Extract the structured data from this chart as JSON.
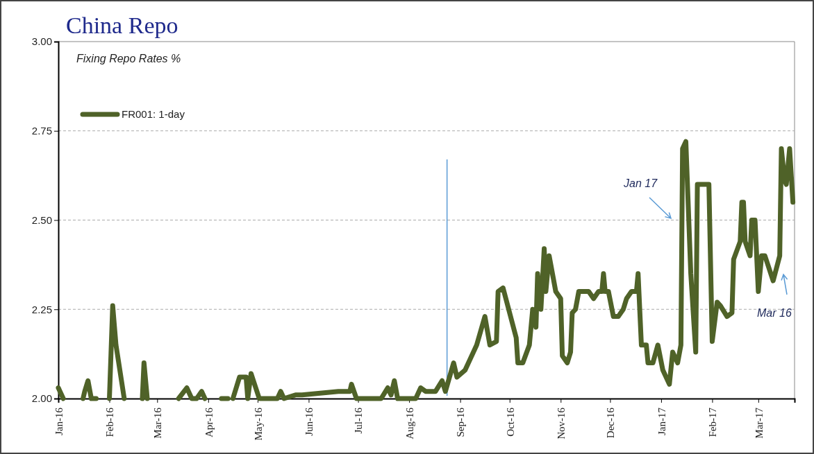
{
  "chart_data": {
    "type": "line",
    "title": "China Repo",
    "subtitle": "Fixing Repo Rates %",
    "x": [
      "2016-01-01",
      "2016-01-02",
      "2016-01-04",
      "2016-01-08",
      "2016-01-16",
      "2016-01-17",
      "2016-01-19",
      "2016-01-21",
      "2016-01-24",
      "2016-01-27",
      "2016-02-01",
      "2016-02-03",
      "2016-02-05",
      "2016-02-10",
      "2016-02-14",
      "2016-02-21",
      "2016-02-22",
      "2016-02-24",
      "2016-02-28",
      "2016-03-14",
      "2016-03-19",
      "2016-03-22",
      "2016-03-25",
      "2016-03-28",
      "2016-03-30",
      "2016-04-03",
      "2016-04-09",
      "2016-04-13",
      "2016-04-14",
      "2016-04-16",
      "2016-04-20",
      "2016-04-24",
      "2016-04-25",
      "2016-04-27",
      "2016-05-02",
      "2016-05-13",
      "2016-05-15",
      "2016-05-17",
      "2016-05-24",
      "2016-05-28",
      "2016-06-19",
      "2016-06-26",
      "2016-06-27",
      "2016-06-30",
      "2016-07-15",
      "2016-07-19",
      "2016-07-21",
      "2016-07-23",
      "2016-07-25",
      "2016-08-05",
      "2016-08-08",
      "2016-08-11",
      "2016-08-17",
      "2016-08-21",
      "2016-08-23",
      "2016-08-28",
      "2016-08-30",
      "2016-09-04",
      "2016-09-11",
      "2016-09-16",
      "2016-09-19",
      "2016-09-23",
      "2016-09-24",
      "2016-09-27",
      "2016-10-05",
      "2016-10-06",
      "2016-10-09",
      "2016-10-13",
      "2016-10-15",
      "2016-10-17",
      "2016-10-18",
      "2016-10-20",
      "2016-10-22",
      "2016-10-23",
      "2016-10-25",
      "2016-10-29",
      "2016-11-01",
      "2016-11-02",
      "2016-11-05",
      "2016-11-07",
      "2016-11-08",
      "2016-11-10",
      "2016-11-12",
      "2016-11-18",
      "2016-11-21",
      "2016-11-24",
      "2016-11-26",
      "2016-11-27",
      "2016-11-28",
      "2016-11-30",
      "2016-12-03",
      "2016-12-06",
      "2016-12-09",
      "2016-12-11",
      "2016-12-14",
      "2016-12-17",
      "2016-12-18",
      "2016-12-20",
      "2016-12-23",
      "2016-12-24",
      "2016-12-27",
      "2016-12-30",
      "2017-01-02",
      "2017-01-06",
      "2017-01-08",
      "2017-01-11",
      "2017-01-13",
      "2017-01-14",
      "2017-01-16",
      "2017-01-19",
      "2017-01-22",
      "2017-01-23",
      "2017-01-30",
      "2017-02-01",
      "2017-02-04",
      "2017-02-06",
      "2017-02-10",
      "2017-02-13",
      "2017-02-14",
      "2017-02-18",
      "2017-02-19",
      "2017-02-20",
      "2017-02-21",
      "2017-02-24",
      "2017-02-25",
      "2017-02-27",
      "2017-03-01",
      "2017-03-03",
      "2017-03-05",
      "2017-03-10",
      "2017-03-14",
      "2017-03-15",
      "2017-03-17",
      "2017-03-18",
      "2017-03-20",
      "2017-03-22"
    ],
    "series": [
      {
        "name": "FR001: 1-day",
        "color": "#4f6228",
        "values": [
          2.03,
          2.02,
          2.0,
          null,
          2.0,
          2.02,
          2.05,
          2.0,
          2.0,
          null,
          2.0,
          2.26,
          2.15,
          2.0,
          null,
          2.0,
          2.1,
          2.0,
          null,
          2.0,
          2.03,
          2.0,
          2.0,
          2.02,
          2.0,
          null,
          2.0,
          2.0,
          null,
          2.0,
          2.06,
          2.06,
          2.0,
          2.07,
          2.0,
          2.0,
          2.02,
          2.0,
          2.01,
          2.01,
          2.02,
          2.02,
          2.04,
          2.0,
          2.0,
          2.03,
          2.01,
          2.05,
          2.0,
          2.0,
          2.03,
          2.02,
          2.02,
          2.05,
          2.02,
          2.1,
          2.06,
          2.08,
          2.15,
          2.23,
          2.15,
          2.16,
          2.3,
          2.31,
          2.17,
          2.1,
          2.1,
          2.15,
          2.25,
          2.2,
          2.35,
          2.25,
          2.42,
          2.3,
          2.4,
          2.3,
          2.28,
          2.12,
          2.1,
          2.13,
          2.24,
          2.25,
          2.3,
          2.3,
          2.28,
          2.3,
          2.3,
          2.35,
          2.3,
          2.3,
          2.23,
          2.23,
          2.25,
          2.28,
          2.3,
          2.3,
          2.35,
          2.15,
          2.15,
          2.1,
          2.1,
          2.15,
          2.08,
          2.04,
          2.13,
          2.1,
          2.15,
          2.7,
          2.72,
          2.35,
          2.13,
          2.6,
          2.6,
          2.16,
          2.27,
          2.26,
          2.23,
          2.24,
          2.39,
          2.44,
          2.55,
          2.55,
          2.44,
          2.4,
          2.5,
          2.5,
          2.3,
          2.4,
          2.4,
          2.33,
          2.4,
          2.7,
          2.61,
          2.6,
          2.7,
          2.55
        ]
      }
    ],
    "xlim": [
      "2016-01-01",
      "2017-03-23"
    ],
    "xticks": [
      {
        "value": "2016-01-01",
        "label": "Jan-16"
      },
      {
        "value": "2016-02-01",
        "label": "Feb-16"
      },
      {
        "value": "2016-03-01",
        "label": "Mar-16"
      },
      {
        "value": "2016-04-01",
        "label": "Apr-16"
      },
      {
        "value": "2016-05-01",
        "label": "May-16"
      },
      {
        "value": "2016-06-01",
        "label": "Jun-16"
      },
      {
        "value": "2016-07-01",
        "label": "Jul-16"
      },
      {
        "value": "2016-08-01",
        "label": "Aug-16"
      },
      {
        "value": "2016-09-01",
        "label": "Sep-16"
      },
      {
        "value": "2016-10-01",
        "label": "Oct-16"
      },
      {
        "value": "2016-11-01",
        "label": "Nov-16"
      },
      {
        "value": "2016-12-01",
        "label": "Dec-16"
      },
      {
        "value": "2017-01-01",
        "label": "Jan-17"
      },
      {
        "value": "2017-02-01",
        "label": "Feb-17"
      },
      {
        "value": "2017-03-01",
        "label": "Mar-17"
      }
    ],
    "ylim": [
      2,
      3
    ],
    "yticks": [
      {
        "value": 2,
        "label": "2.00"
      },
      {
        "value": 2.25,
        "label": "2.25"
      },
      {
        "value": 2.5,
        "label": "2.50"
      },
      {
        "value": 2.75,
        "label": "2.75"
      },
      {
        "value": 3,
        "label": "3.00"
      }
    ],
    "grid": "y",
    "legend": "top left",
    "line_style": "solid",
    "marker": "none",
    "ref_lines": [
      {
        "axis": "x",
        "value": "2016-08-24",
        "color": "#5b9bd5"
      }
    ],
    "annotations": [
      "Jan 17",
      "Mar 16"
    ]
  }
}
